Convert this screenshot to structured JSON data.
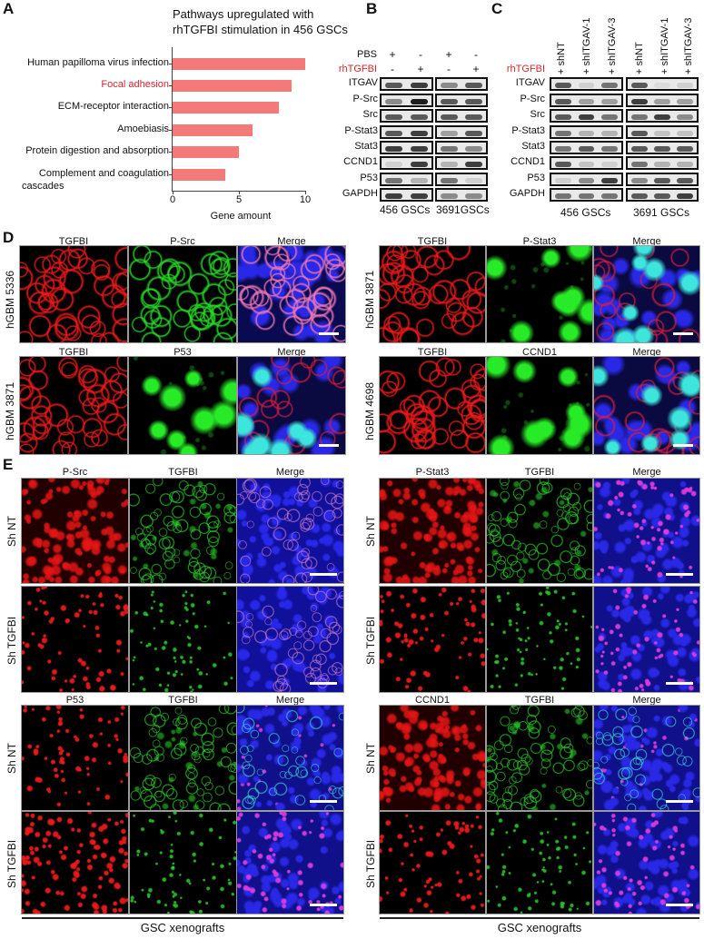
{
  "panel_labels": {
    "a": "A",
    "b": "B",
    "c": "C",
    "d": "D",
    "e": "E"
  },
  "chart_data": {
    "type": "bar",
    "orientation": "horizontal",
    "title": "Pathways upregulated with rhTGFBI stimulation in 456 GSCs",
    "title_lines": [
      "Pathways upregulated with",
      "rhTGFBI stimulation in 456 GSCs"
    ],
    "categories": [
      "Human papilloma virus infection",
      "Focal adhesion",
      "ECM-receptor interaction",
      "Amoebiasis",
      "Protein digestion and absorption",
      "Complement and coagulation cascades"
    ],
    "category_lines": [
      [
        "Human papilloma virus infection"
      ],
      [
        "Focal adhesion"
      ],
      [
        "ECM-receptor interaction"
      ],
      [
        "Amoebiasis"
      ],
      [
        "Protein digestion and absorption"
      ],
      [
        "Complement and coagulation",
        "cascades"
      ]
    ],
    "highlighted_category": "Focal adhesion",
    "values": [
      10,
      9,
      8,
      6,
      5,
      4
    ],
    "xlabel": "Gene amount",
    "xlim": [
      0,
      10
    ],
    "xticks": [
      0,
      5,
      10
    ],
    "bar_color": "#f47a7a",
    "highlight_color": "#d7262e",
    "grid": false
  },
  "panel_b": {
    "treatments": [
      {
        "label": "PBS",
        "color": "#111111",
        "values": [
          "+",
          "-",
          "+",
          "-"
        ]
      },
      {
        "label": "rhTGFBI",
        "color": "#d7262e",
        "values": [
          "-",
          "+",
          "-",
          "+"
        ]
      }
    ],
    "groups": [
      "456 GSCs",
      "3691GSCs"
    ],
    "proteins": [
      "ITGAV",
      "P-Src",
      "Src",
      "P-Stat3",
      "Stat3",
      "CCND1",
      "P53",
      "GAPDH"
    ],
    "band_intensity": [
      [
        [
          0.8,
          0.9
        ],
        [
          0.6,
          1.0
        ],
        [
          0.8,
          0.8
        ],
        [
          0.8,
          0.9
        ],
        [
          0.9,
          0.9
        ],
        [
          0.2,
          0.9
        ],
        [
          0.7,
          0.4
        ],
        [
          0.9,
          0.9
        ]
      ],
      [
        [
          0.6,
          0.8
        ],
        [
          0.8,
          0.8
        ],
        [
          0.8,
          0.8
        ],
        [
          0.5,
          0.8
        ],
        [
          0.7,
          0.6
        ],
        [
          0.4,
          0.9
        ],
        [
          0.7,
          0.2
        ],
        [
          0.6,
          0.6
        ]
      ]
    ]
  },
  "panel_c": {
    "treatment_label": "rhTGFBI",
    "treatment_color": "#d7262e",
    "columns": [
      "+ shNT",
      "+ shITGAV-1",
      "+ shITGAV-3",
      "+ shNT",
      "+ shITGAV-1",
      "+ shITGAV-3"
    ],
    "groups": [
      "456 GSCs",
      "3691 GSCs"
    ],
    "proteins": [
      "ITGAV",
      "P-Src",
      "Src",
      "P-Stat3",
      "Stat3",
      "CCND1",
      "P53",
      "GAPDH"
    ],
    "band_intensity": [
      [
        [
          0.8,
          0.2,
          0.7
        ],
        [
          0.8,
          0.5,
          0.5
        ],
        [
          0.8,
          0.9,
          0.7
        ],
        [
          0.7,
          0.4,
          0.4
        ],
        [
          0.7,
          0.8,
          0.7
        ],
        [
          0.8,
          0.3,
          0.2
        ],
        [
          0.2,
          0.6,
          0.9
        ],
        [
          0.7,
          0.7,
          0.7
        ]
      ],
      [
        [
          0.8,
          0.1,
          0.2
        ],
        [
          0.9,
          0.5,
          0.5
        ],
        [
          0.7,
          0.9,
          0.6
        ],
        [
          0.8,
          0.3,
          0.3
        ],
        [
          0.8,
          0.8,
          0.8
        ],
        [
          0.7,
          0.4,
          0.4
        ],
        [
          0.6,
          0.8,
          0.8
        ],
        [
          0.8,
          0.8,
          0.9
        ]
      ]
    ]
  },
  "panel_d": [
    {
      "sample": "hGBM 5336",
      "channels": [
        "TGFBI",
        "P-Src",
        "Merge"
      ]
    },
    {
      "sample": "hGBM 3871",
      "channels": [
        "TGFBI",
        "P53",
        "Merge"
      ]
    },
    {
      "sample": "hGBM 3871",
      "channels": [
        "TGFBI",
        "P-Stat3",
        "Merge"
      ]
    },
    {
      "sample": "hGBM 4698",
      "channels": [
        "TGFBI",
        "CCND1",
        "Merge"
      ]
    }
  ],
  "panel_e": {
    "rows": [
      "Sh NT",
      "Sh TGFBI"
    ],
    "blocks": [
      {
        "channels": [
          "P-Src",
          "TGFBI",
          "Merge"
        ]
      },
      {
        "channels": [
          "P53",
          "TGFBI",
          "Merge"
        ]
      },
      {
        "channels": [
          "P-Stat3",
          "TGFBI",
          "Merge"
        ]
      },
      {
        "channels": [
          "CCND1",
          "TGFBI",
          "Merge"
        ]
      }
    ],
    "footers": [
      "GSC xenografts",
      "GSC xenografts"
    ]
  }
}
